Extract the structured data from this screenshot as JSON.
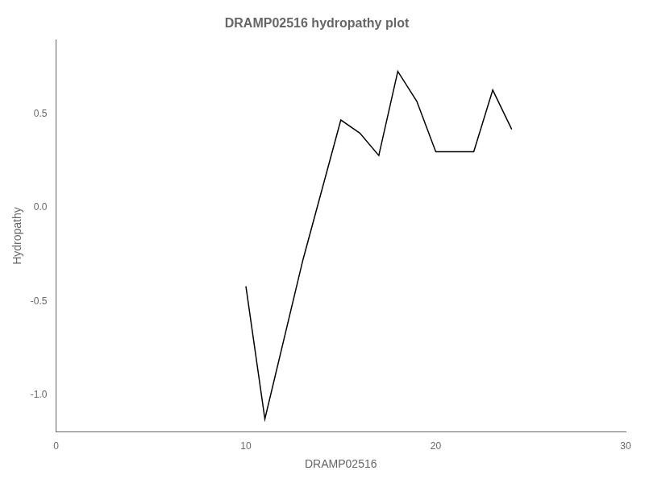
{
  "chart_data": {
    "type": "line",
    "title": "DRAMP02516 hydropathy plot",
    "xlabel": "DRAMP02516",
    "ylabel": "Hydropathy",
    "x": [
      10,
      11,
      13,
      15,
      16,
      17,
      18,
      19,
      20,
      21,
      22,
      23,
      24
    ],
    "values": [
      -0.42,
      -1.13,
      -0.28,
      0.47,
      0.4,
      0.28,
      0.73,
      0.57,
      0.3,
      0.3,
      0.3,
      0.63,
      0.42
    ],
    "color": "black",
    "xlim": [
      0,
      30
    ],
    "ylim": [
      -1.2,
      0.9
    ],
    "xticks": [
      0,
      10,
      20,
      30
    ],
    "yticks": [
      {
        "value": -1.0,
        "label": "-1.0"
      },
      {
        "value": -0.5,
        "label": "-0.5"
      },
      {
        "value": 0.0,
        "label": "0.0"
      },
      {
        "value": 0.5,
        "label": "0.5"
      }
    ],
    "grid": false,
    "marker": "none",
    "line_style": "solid"
  }
}
